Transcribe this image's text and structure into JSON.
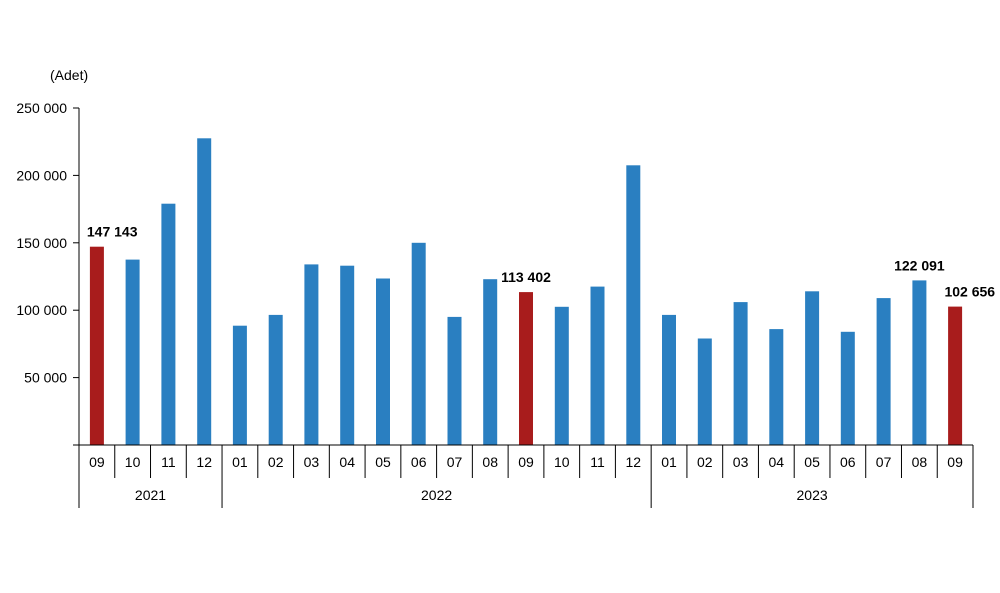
{
  "chart_data": {
    "type": "bar",
    "unit_label": "(Adet)",
    "categories": [
      "09",
      "10",
      "11",
      "12",
      "01",
      "02",
      "03",
      "04",
      "05",
      "06",
      "07",
      "08",
      "09",
      "10",
      "11",
      "12",
      "01",
      "02",
      "03",
      "04",
      "05",
      "06",
      "07",
      "08",
      "09"
    ],
    "values": [
      147143,
      137500,
      179000,
      227500,
      88500,
      96500,
      134000,
      133000,
      123500,
      150000,
      95000,
      123000,
      113402,
      102500,
      117500,
      207500,
      96500,
      79000,
      106000,
      86000,
      114000,
      84000,
      109000,
      122091,
      102656
    ],
    "highlighted": [
      0,
      12,
      24
    ],
    "data_labels": [
      {
        "index": 0,
        "text": "147 143"
      },
      {
        "index": 12,
        "text": "113 402"
      },
      {
        "index": 23,
        "text": "122 091"
      },
      {
        "index": 24,
        "text": "102 656"
      }
    ],
    "year_groups": [
      {
        "label": "2021",
        "start": 0,
        "end": 3
      },
      {
        "label": "2022",
        "start": 4,
        "end": 15
      },
      {
        "label": "2023",
        "start": 16,
        "end": 24
      }
    ],
    "y_ticks": [
      {
        "value": 0,
        "label": ""
      },
      {
        "value": 50000,
        "label": "50 000"
      },
      {
        "value": 100000,
        "label": "100 000"
      },
      {
        "value": 150000,
        "label": "150 000"
      },
      {
        "value": 200000,
        "label": "200 000"
      },
      {
        "value": 250000,
        "label": "250 000"
      }
    ],
    "ylim": [
      0,
      250000
    ],
    "grid": false,
    "colors": {
      "normal": "#2a7fc1",
      "highlight": "#a81c1c"
    }
  }
}
